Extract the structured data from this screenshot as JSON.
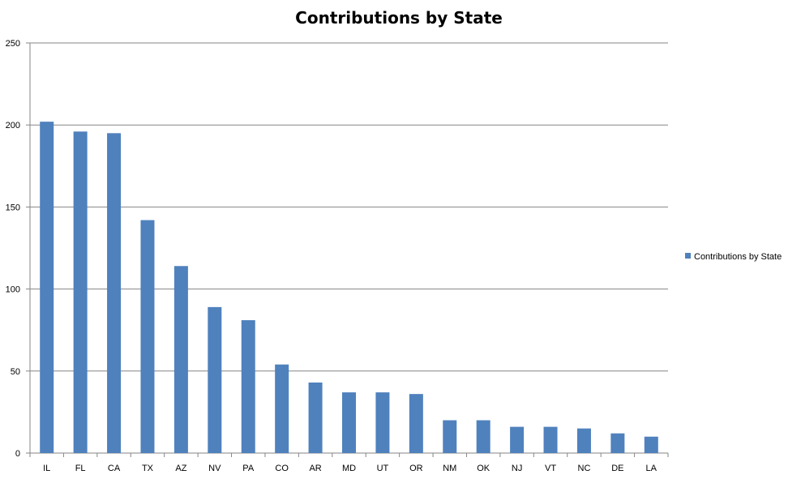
{
  "chart_data": {
    "type": "bar",
    "title": "Contributions by State",
    "xlabel": "",
    "ylabel": "",
    "categories": [
      "IL",
      "FL",
      "CA",
      "TX",
      "AZ",
      "NV",
      "PA",
      "CO",
      "AR",
      "MD",
      "UT",
      "OR",
      "NM",
      "OK",
      "NJ",
      "VT",
      "NC",
      "DE",
      "LA"
    ],
    "series": [
      {
        "name": "Contributions by State",
        "values": [
          202,
          196,
          195,
          142,
          114,
          89,
          81,
          54,
          43,
          37,
          37,
          36,
          20,
          20,
          16,
          16,
          15,
          12,
          10
        ],
        "color": "#4f81bd"
      }
    ],
    "ylim": [
      0,
      250
    ],
    "yticks": [
      "0",
      "50",
      "100",
      "150",
      "200",
      "250"
    ],
    "grid": true,
    "legend_position": "right",
    "colors": {
      "bar": "#4f81bd",
      "grid": "#868686",
      "axis": "#868686"
    }
  }
}
